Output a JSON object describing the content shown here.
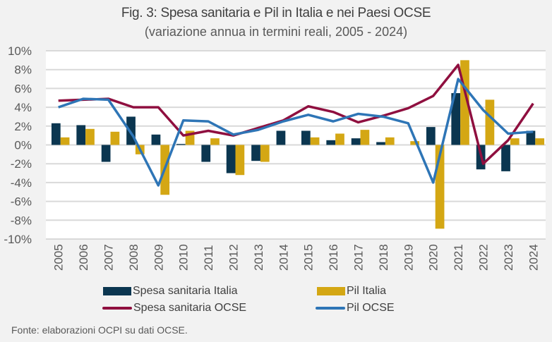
{
  "header": {
    "title": "Fig. 3: Spesa sanitaria e Pil in Italia e nei Paesi OCSE",
    "subtitle": "(variazione annua in termini reali, 2005 - 2024)"
  },
  "footer": {
    "source": "Fonte: elaborazioni OCPI su dati OCSE."
  },
  "chart_data": {
    "type": "bar",
    "title": "Fig. 3: Spesa sanitaria e Pil in Italia e nei Paesi OCSE",
    "subtitle": "(variazione annua in termini reali, 2005 - 2024)",
    "xlabel": "",
    "ylabel": "",
    "ylim": [
      -10,
      10
    ],
    "yticks": [
      -10,
      -8,
      -6,
      -4,
      -2,
      0,
      2,
      4,
      6,
      8,
      10
    ],
    "ytick_labels": [
      "-10%",
      "-8%",
      "-6%",
      "-4%",
      "-2%",
      "0%",
      "2%",
      "4%",
      "6%",
      "8%",
      "10%"
    ],
    "grid": true,
    "legend_position": "bottom",
    "categories": [
      "2005",
      "2006",
      "2007",
      "2008",
      "2009",
      "2010",
      "2011",
      "2012",
      "2013",
      "2014",
      "2015",
      "2016",
      "2017",
      "2018",
      "2019",
      "2020",
      "2021",
      "2022",
      "2023",
      "2024"
    ],
    "series": [
      {
        "name": "Spesa sanitaria Italia",
        "kind": "bar",
        "color": "#0b3650",
        "values": [
          2.3,
          2.1,
          -1.8,
          3.0,
          1.1,
          0.1,
          -1.8,
          -3.0,
          -1.7,
          1.5,
          1.5,
          0.5,
          0.7,
          0.3,
          0.0,
          1.9,
          5.5,
          -2.6,
          -2.8,
          1.5
        ]
      },
      {
        "name": "Pil Italia",
        "kind": "bar",
        "color": "#d4a714",
        "values": [
          0.8,
          1.7,
          1.4,
          -1.0,
          -5.3,
          1.5,
          0.7,
          -3.2,
          -1.8,
          0.0,
          0.8,
          1.2,
          1.6,
          0.8,
          0.4,
          -8.9,
          9.0,
          4.8,
          0.7,
          0.7
        ]
      },
      {
        "name": "Spesa sanitaria OCSE",
        "kind": "line",
        "color": "#8f0f3f",
        "values": [
          4.7,
          4.8,
          4.9,
          4.0,
          4.0,
          1.0,
          1.5,
          1.0,
          1.8,
          2.6,
          4.1,
          3.5,
          2.4,
          3.1,
          3.9,
          5.2,
          8.5,
          -2.0,
          0.5,
          4.4
        ]
      },
      {
        "name": "Pil OCSE",
        "kind": "line",
        "color": "#2e75b6",
        "values": [
          4.0,
          4.9,
          4.8,
          0.9,
          -4.3,
          2.6,
          2.5,
          1.1,
          1.6,
          2.5,
          3.2,
          2.5,
          3.3,
          3.0,
          2.3,
          -4.0,
          7.0,
          3.7,
          1.2,
          1.4
        ]
      }
    ]
  }
}
